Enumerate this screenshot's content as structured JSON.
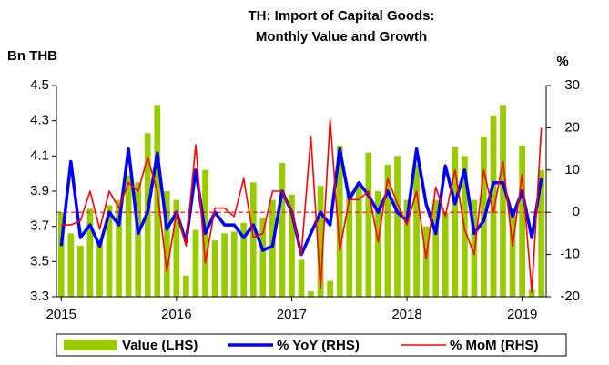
{
  "chart_data": {
    "type": "bar_line",
    "title": "TH: Import of Capital Goods:",
    "subtitle": "Monthly Value and Growth",
    "y_label": "Bn THB",
    "y2_label": "%",
    "categories": [
      "2015",
      null,
      null,
      null,
      null,
      null,
      null,
      null,
      null,
      null,
      null,
      null,
      "2016",
      null,
      null,
      null,
      null,
      null,
      null,
      null,
      null,
      null,
      null,
      null,
      "2017",
      null,
      null,
      null,
      null,
      null,
      null,
      null,
      null,
      null,
      null,
      null,
      "2018",
      null,
      null,
      null,
      null,
      null,
      null,
      null,
      null,
      null,
      null,
      null,
      "2019",
      null,
      null
    ],
    "series": [
      {
        "name": "Value (LHS)",
        "type": "bar",
        "color": "#99cc00",
        "values": [
          3.78,
          3.66,
          3.59,
          3.8,
          3.62,
          3.82,
          3.85,
          3.99,
          3.95,
          4.23,
          4.39,
          3.9,
          3.85,
          3.42,
          3.68,
          4.02,
          3.62,
          3.66,
          3.67,
          3.72,
          3.95,
          3.75,
          3.85,
          4.06,
          3.88,
          3.51,
          3.33,
          3.93,
          3.39,
          4.16,
          3.9,
          3.95,
          4.12,
          3.9,
          4.05,
          4.1,
          3.85,
          4.05,
          3.7,
          3.85,
          3.78,
          4.15,
          4.1,
          3.85,
          4.21,
          4.33,
          4.39,
          3.8,
          4.16,
          3.34,
          4.02
        ]
      },
      {
        "name": "% YoY (RHS)",
        "type": "line",
        "axis": "y2",
        "color": "#0000ff",
        "values": [
          -8,
          12,
          -6,
          -3,
          -8,
          0,
          -3,
          15,
          -5,
          0,
          14,
          -4,
          0,
          -7,
          10,
          -5,
          0,
          -3,
          -3,
          -6,
          -3,
          -9,
          -8,
          5,
          0,
          -10,
          -5,
          0,
          -3,
          15,
          3,
          7,
          4,
          0,
          5,
          0,
          -2,
          15,
          2,
          -5,
          11,
          2,
          10,
          -5,
          -2,
          7,
          7,
          -1,
          5,
          -6,
          8
        ]
      },
      {
        "name": "% MoM (RHS)",
        "type": "line",
        "axis": "y2",
        "color": "#ff0000",
        "values": [
          -3,
          -3,
          -2,
          5,
          -4,
          5,
          1,
          7,
          5,
          13,
          5,
          -14,
          0,
          -8,
          16,
          -12,
          1,
          1,
          -1,
          8,
          -6,
          -5,
          5,
          5,
          0,
          -10,
          18,
          -18,
          22,
          -9,
          3,
          3,
          5,
          -7,
          8,
          2,
          -3,
          5,
          -11,
          6,
          -1,
          10,
          -4,
          -10,
          10,
          0,
          12,
          -8,
          9,
          -19,
          20
        ]
      }
    ],
    "ylim": [
      3.3,
      4.5
    ],
    "yticks": [
      {
        "value": 3.3,
        "label": "3.3"
      },
      {
        "value": 3.5,
        "label": "3.5"
      },
      {
        "value": 3.7,
        "label": "3.7"
      },
      {
        "value": 3.9,
        "label": "3.9"
      },
      {
        "value": 4.1,
        "label": "4.1"
      },
      {
        "value": 4.3,
        "label": "4.3"
      },
      {
        "value": 4.5,
        "label": "4.5"
      }
    ],
    "y2lim": [
      -20,
      30
    ],
    "y2ticks": [
      -20,
      -10,
      0,
      10,
      20,
      30
    ],
    "legend": "bottom"
  }
}
